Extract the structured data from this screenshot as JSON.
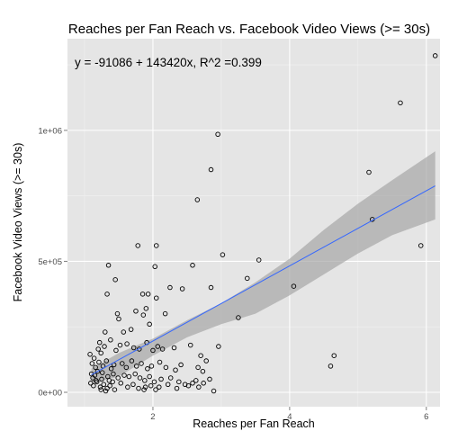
{
  "chart_data": {
    "type": "scatter",
    "title": "Reaches per Fan Reach vs. Facebook Video Views (>= 30s)",
    "xlabel": "Reaches per Fan Reach",
    "ylabel": "Facebook Video Views (>= 30s)",
    "annotation": "y = -91086 + 143420x, R^2 =0.399",
    "xlim": [
      0.75,
      6.2
    ],
    "ylim": [
      -55000,
      1350000
    ],
    "xticks": [
      2,
      4,
      6
    ],
    "xtick_labels": [
      "2",
      "4",
      "6"
    ],
    "yticks": [
      0,
      500000,
      1000000
    ],
    "ytick_labels": [
      "0e+00",
      "5e+05",
      "1e+06"
    ],
    "grid": true,
    "legend": "none",
    "colors": {
      "panel": "#e5e5e5",
      "grid_major": "#ffffff",
      "fit_line": "#3366ff",
      "ribbon": "#a6a6a6",
      "point": "#000000"
    },
    "fit": {
      "intercept": -91086,
      "slope": 143420,
      "x_range": [
        1.1,
        6.13
      ],
      "ci_lower": [
        [
          1.1,
          35000
        ],
        [
          1.5,
          60000
        ],
        [
          2.0,
          140000
        ],
        [
          2.5,
          210000
        ],
        [
          3.0,
          260000
        ],
        [
          3.5,
          300000
        ],
        [
          4.0,
          370000
        ],
        [
          4.5,
          450000
        ],
        [
          5.0,
          530000
        ],
        [
          5.5,
          600000
        ],
        [
          6.13,
          660000
        ]
      ],
      "ci_upper": [
        [
          1.1,
          90000
        ],
        [
          1.5,
          150000
        ],
        [
          2.0,
          205000
        ],
        [
          2.5,
          275000
        ],
        [
          3.0,
          340000
        ],
        [
          3.5,
          420000
        ],
        [
          4.0,
          510000
        ],
        [
          4.5,
          620000
        ],
        [
          5.0,
          720000
        ],
        [
          5.5,
          810000
        ],
        [
          6.13,
          920000
        ]
      ]
    },
    "points": [
      [
        6.13,
        1285000
      ],
      [
        5.62,
        1105000
      ],
      [
        5.16,
        840000
      ],
      [
        5.21,
        660000
      ],
      [
        5.92,
        560000
      ],
      [
        4.06,
        405000
      ],
      [
        3.55,
        505000
      ],
      [
        3.38,
        435000
      ],
      [
        4.65,
        140000
      ],
      [
        4.6,
        100000
      ],
      [
        2.95,
        985000
      ],
      [
        2.85,
        850000
      ],
      [
        2.65,
        735000
      ],
      [
        3.02,
        525000
      ],
      [
        2.58,
        485000
      ],
      [
        2.85,
        400000
      ],
      [
        2.43,
        395000
      ],
      [
        2.25,
        400000
      ],
      [
        2.05,
        560000
      ],
      [
        1.78,
        560000
      ],
      [
        2.03,
        480000
      ],
      [
        1.35,
        485000
      ],
      [
        1.45,
        430000
      ],
      [
        1.33,
        375000
      ],
      [
        1.85,
        375000
      ],
      [
        1.93,
        375000
      ],
      [
        2.05,
        360000
      ],
      [
        3.25,
        285000
      ],
      [
        2.18,
        300000
      ],
      [
        1.75,
        310000
      ],
      [
        1.9,
        320000
      ],
      [
        1.86,
        295000
      ],
      [
        1.48,
        300000
      ],
      [
        1.5,
        280000
      ],
      [
        1.95,
        260000
      ],
      [
        1.68,
        240000
      ],
      [
        1.3,
        230000
      ],
      [
        1.57,
        230000
      ],
      [
        1.38,
        200000
      ],
      [
        1.22,
        190000
      ],
      [
        1.08,
        145000
      ],
      [
        1.14,
        130000
      ],
      [
        1.2,
        165000
      ],
      [
        1.24,
        150000
      ],
      [
        1.29,
        175000
      ],
      [
        1.46,
        160000
      ],
      [
        1.52,
        180000
      ],
      [
        1.62,
        185000
      ],
      [
        1.72,
        170000
      ],
      [
        1.8,
        165000
      ],
      [
        1.91,
        190000
      ],
      [
        2.0,
        160000
      ],
      [
        2.07,
        175000
      ],
      [
        2.14,
        165000
      ],
      [
        2.31,
        170000
      ],
      [
        2.55,
        180000
      ],
      [
        2.7,
        140000
      ],
      [
        2.78,
        120000
      ],
      [
        2.96,
        175000
      ],
      [
        1.11,
        110000
      ],
      [
        1.16,
        95000
      ],
      [
        1.21,
        115000
      ],
      [
        1.27,
        100000
      ],
      [
        1.32,
        120000
      ],
      [
        1.39,
        90000
      ],
      [
        1.43,
        105000
      ],
      [
        1.55,
        110000
      ],
      [
        1.61,
        95000
      ],
      [
        1.69,
        120000
      ],
      [
        1.76,
        100000
      ],
      [
        1.83,
        110000
      ],
      [
        1.92,
        90000
      ],
      [
        1.98,
        100000
      ],
      [
        2.1,
        115000
      ],
      [
        2.19,
        95000
      ],
      [
        2.33,
        85000
      ],
      [
        2.41,
        105000
      ],
      [
        2.66,
        95000
      ],
      [
        2.73,
        80000
      ],
      [
        1.1,
        70000
      ],
      [
        1.15,
        65000
      ],
      [
        1.19,
        80000
      ],
      [
        1.26,
        75000
      ],
      [
        1.34,
        60000
      ],
      [
        1.42,
        70000
      ],
      [
        1.49,
        55000
      ],
      [
        1.58,
        65000
      ],
      [
        1.65,
        60000
      ],
      [
        1.74,
        70000
      ],
      [
        1.81,
        55000
      ],
      [
        1.88,
        45000
      ],
      [
        1.95,
        60000
      ],
      [
        2.02,
        40000
      ],
      [
        2.12,
        50000
      ],
      [
        2.26,
        55000
      ],
      [
        2.38,
        40000
      ],
      [
        2.47,
        30000
      ],
      [
        2.63,
        45000
      ],
      [
        2.74,
        35000
      ],
      [
        2.83,
        50000
      ],
      [
        1.09,
        35000
      ],
      [
        1.13,
        25000
      ],
      [
        1.18,
        40000
      ],
      [
        1.23,
        20000
      ],
      [
        1.28,
        30000
      ],
      [
        1.33,
        15000
      ],
      [
        1.37,
        25000
      ],
      [
        1.44,
        10000
      ],
      [
        1.53,
        35000
      ],
      [
        1.63,
        20000
      ],
      [
        1.71,
        30000
      ],
      [
        1.79,
        15000
      ],
      [
        1.87,
        10000
      ],
      [
        1.97,
        25000
      ],
      [
        2.09,
        20000
      ],
      [
        2.22,
        30000
      ],
      [
        2.35,
        15000
      ],
      [
        2.52,
        25000
      ],
      [
        2.67,
        20000
      ],
      [
        2.89,
        5000
      ],
      [
        1.12,
        55000
      ],
      [
        1.17,
        45000
      ],
      [
        1.25,
        50000
      ],
      [
        1.36,
        45000
      ],
      [
        1.41,
        40000
      ],
      [
        1.89,
        20000
      ],
      [
        2.04,
        10000
      ],
      [
        2.58,
        35000
      ],
      [
        1.24,
        10000
      ],
      [
        1.31,
        5000
      ]
    ]
  }
}
